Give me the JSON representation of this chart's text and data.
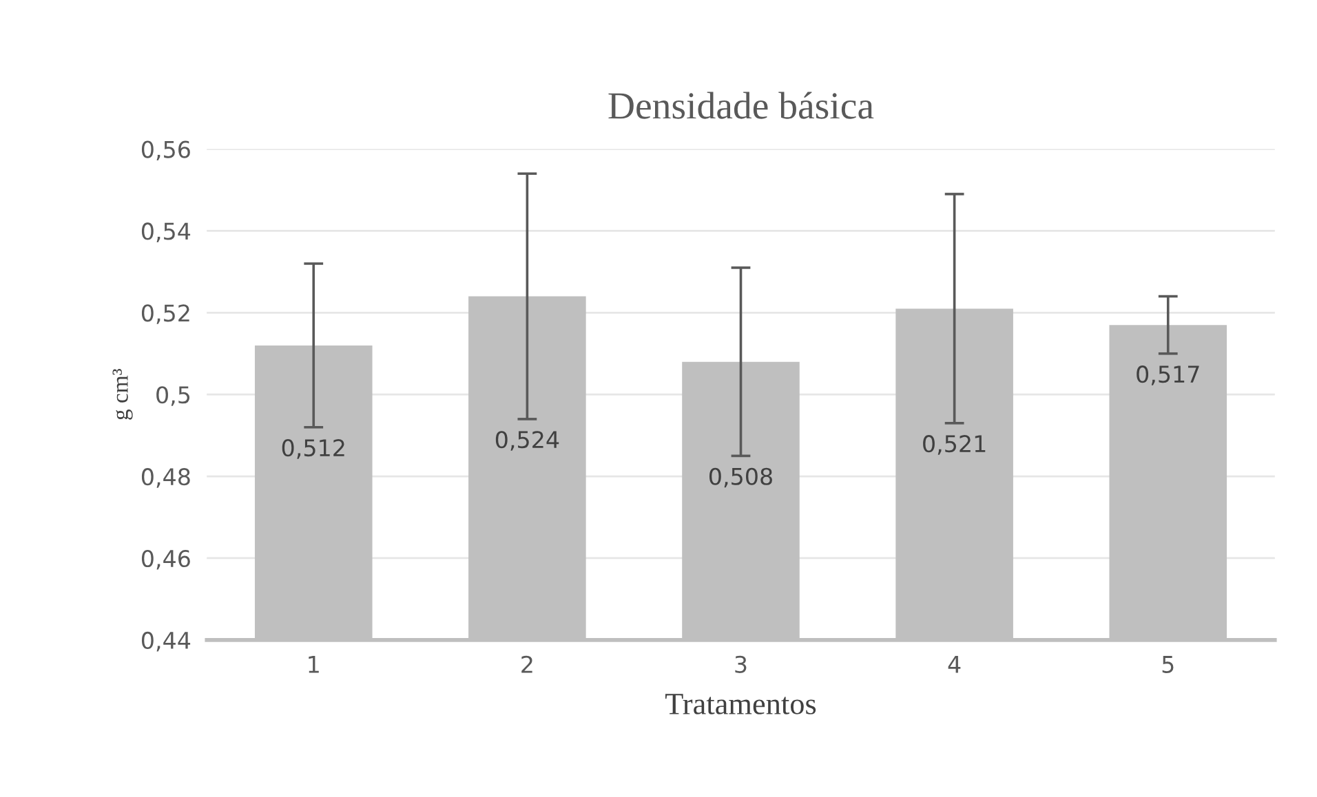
{
  "chart_data": {
    "type": "bar",
    "title": "Densidade básica",
    "xlabel": "Tratamentos",
    "ylabel": "g cm³",
    "categories": [
      "1",
      "2",
      "3",
      "4",
      "5"
    ],
    "values": [
      0.512,
      0.524,
      0.508,
      0.521,
      0.517
    ],
    "errors": [
      0.02,
      0.03,
      0.023,
      0.028,
      0.007
    ],
    "value_labels": [
      "0,512",
      "0,524",
      "0,508",
      "0,521",
      "0,517"
    ],
    "color": "#bfbfbf",
    "ylim": [
      0.44,
      0.56
    ],
    "yticks": [
      {
        "value": 0.44,
        "label": "0,44"
      },
      {
        "value": 0.46,
        "label": "0,46"
      },
      {
        "value": 0.48,
        "label": "0,48"
      },
      {
        "value": 0.5,
        "label": "0,5"
      },
      {
        "value": 0.52,
        "label": "0,52"
      },
      {
        "value": 0.54,
        "label": "0,54"
      },
      {
        "value": 0.56,
        "label": "0,56"
      }
    ],
    "grid": "y",
    "legend": false
  }
}
